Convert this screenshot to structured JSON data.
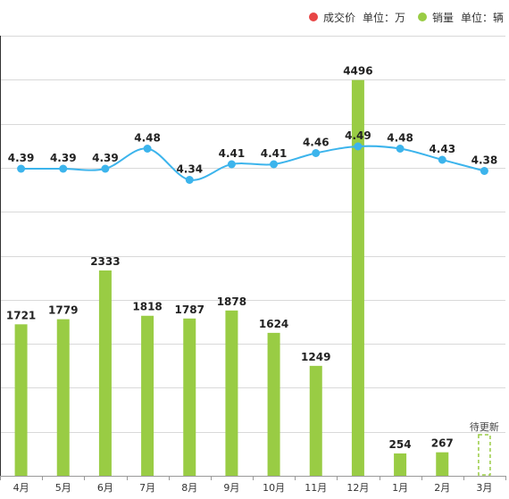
{
  "legend": {
    "price": {
      "label": "成交价",
      "unit": "单位：万",
      "color": "#e84545"
    },
    "sales": {
      "label": "销量",
      "unit": "单位：辆",
      "color": "#99cc44"
    }
  },
  "line_color": "#3cb4ec",
  "chart_data": {
    "type": "bar+line",
    "categories": [
      "4月",
      "5月",
      "6月",
      "7月",
      "8月",
      "9月",
      "10月",
      "11月",
      "12月",
      "1月",
      "2月",
      "3月"
    ],
    "series": [
      {
        "name": "成交价",
        "type": "line",
        "values": [
          4.39,
          4.39,
          4.39,
          4.48,
          4.34,
          4.41,
          4.41,
          4.46,
          4.49,
          4.48,
          4.43,
          4.38
        ]
      },
      {
        "name": "销量",
        "type": "bar",
        "values": [
          1721,
          1779,
          2333,
          1818,
          1787,
          1878,
          1624,
          1249,
          4496,
          254,
          267,
          null
        ]
      }
    ],
    "pending_label": "待更新",
    "pending_index": 11,
    "grid": true
  }
}
